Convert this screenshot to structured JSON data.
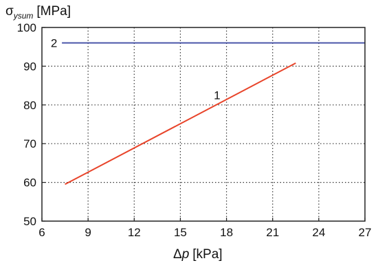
{
  "chart_data": {
    "type": "line",
    "ylabel": {
      "symbol": "σ",
      "subscript": "ysum",
      "unit": "[MPa]"
    },
    "xlabel": {
      "symbol": "Δ",
      "var": "p",
      "unit": "[kPa]"
    },
    "xlim": [
      6,
      27
    ],
    "ylim": [
      50,
      100
    ],
    "x_ticks": [
      6,
      9,
      12,
      15,
      18,
      21,
      24,
      27
    ],
    "y_ticks": [
      50,
      60,
      70,
      80,
      90,
      100
    ],
    "grid": true,
    "series": [
      {
        "name": "1",
        "color": "#e8442a",
        "x": [
          7.5,
          22.5
        ],
        "y": [
          59.5,
          90.8
        ],
        "label_at": [
          17.6,
          82.5
        ]
      },
      {
        "name": "2",
        "color": "#4a55a8",
        "x": [
          7.3,
          27
        ],
        "y": [
          96,
          96
        ],
        "label_at": [
          7.0,
          96
        ]
      }
    ]
  }
}
